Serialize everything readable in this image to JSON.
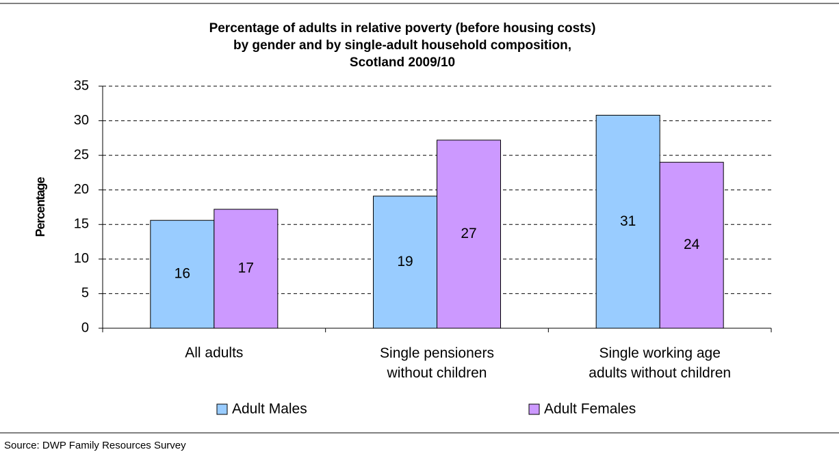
{
  "chart_data": {
    "type": "bar",
    "title": "Percentage of adults in relative poverty (before housing costs)\nby gender and by single-adult household composition,\nScotland 2009/10",
    "y_label": "Percentage",
    "categories": [
      "All adults",
      "Single pensioners\nwithout children",
      "Single working age\nadults without children"
    ],
    "series": [
      {
        "name": "Adult Males",
        "color": "#99ccff",
        "values": [
          15.6,
          19.1,
          30.8
        ],
        "value_labels": [
          "16",
          "19",
          "31"
        ]
      },
      {
        "name": "Adult Females",
        "color": "#cc99ff",
        "values": [
          17.2,
          27.2,
          24.0
        ],
        "value_labels": [
          "17",
          "27",
          "24"
        ]
      }
    ],
    "ylim": [
      0,
      35
    ],
    "yticks": [
      0,
      5,
      10,
      15,
      20,
      25,
      30,
      35
    ],
    "grid": true,
    "source": "Source: DWP Family Resources Survey"
  }
}
